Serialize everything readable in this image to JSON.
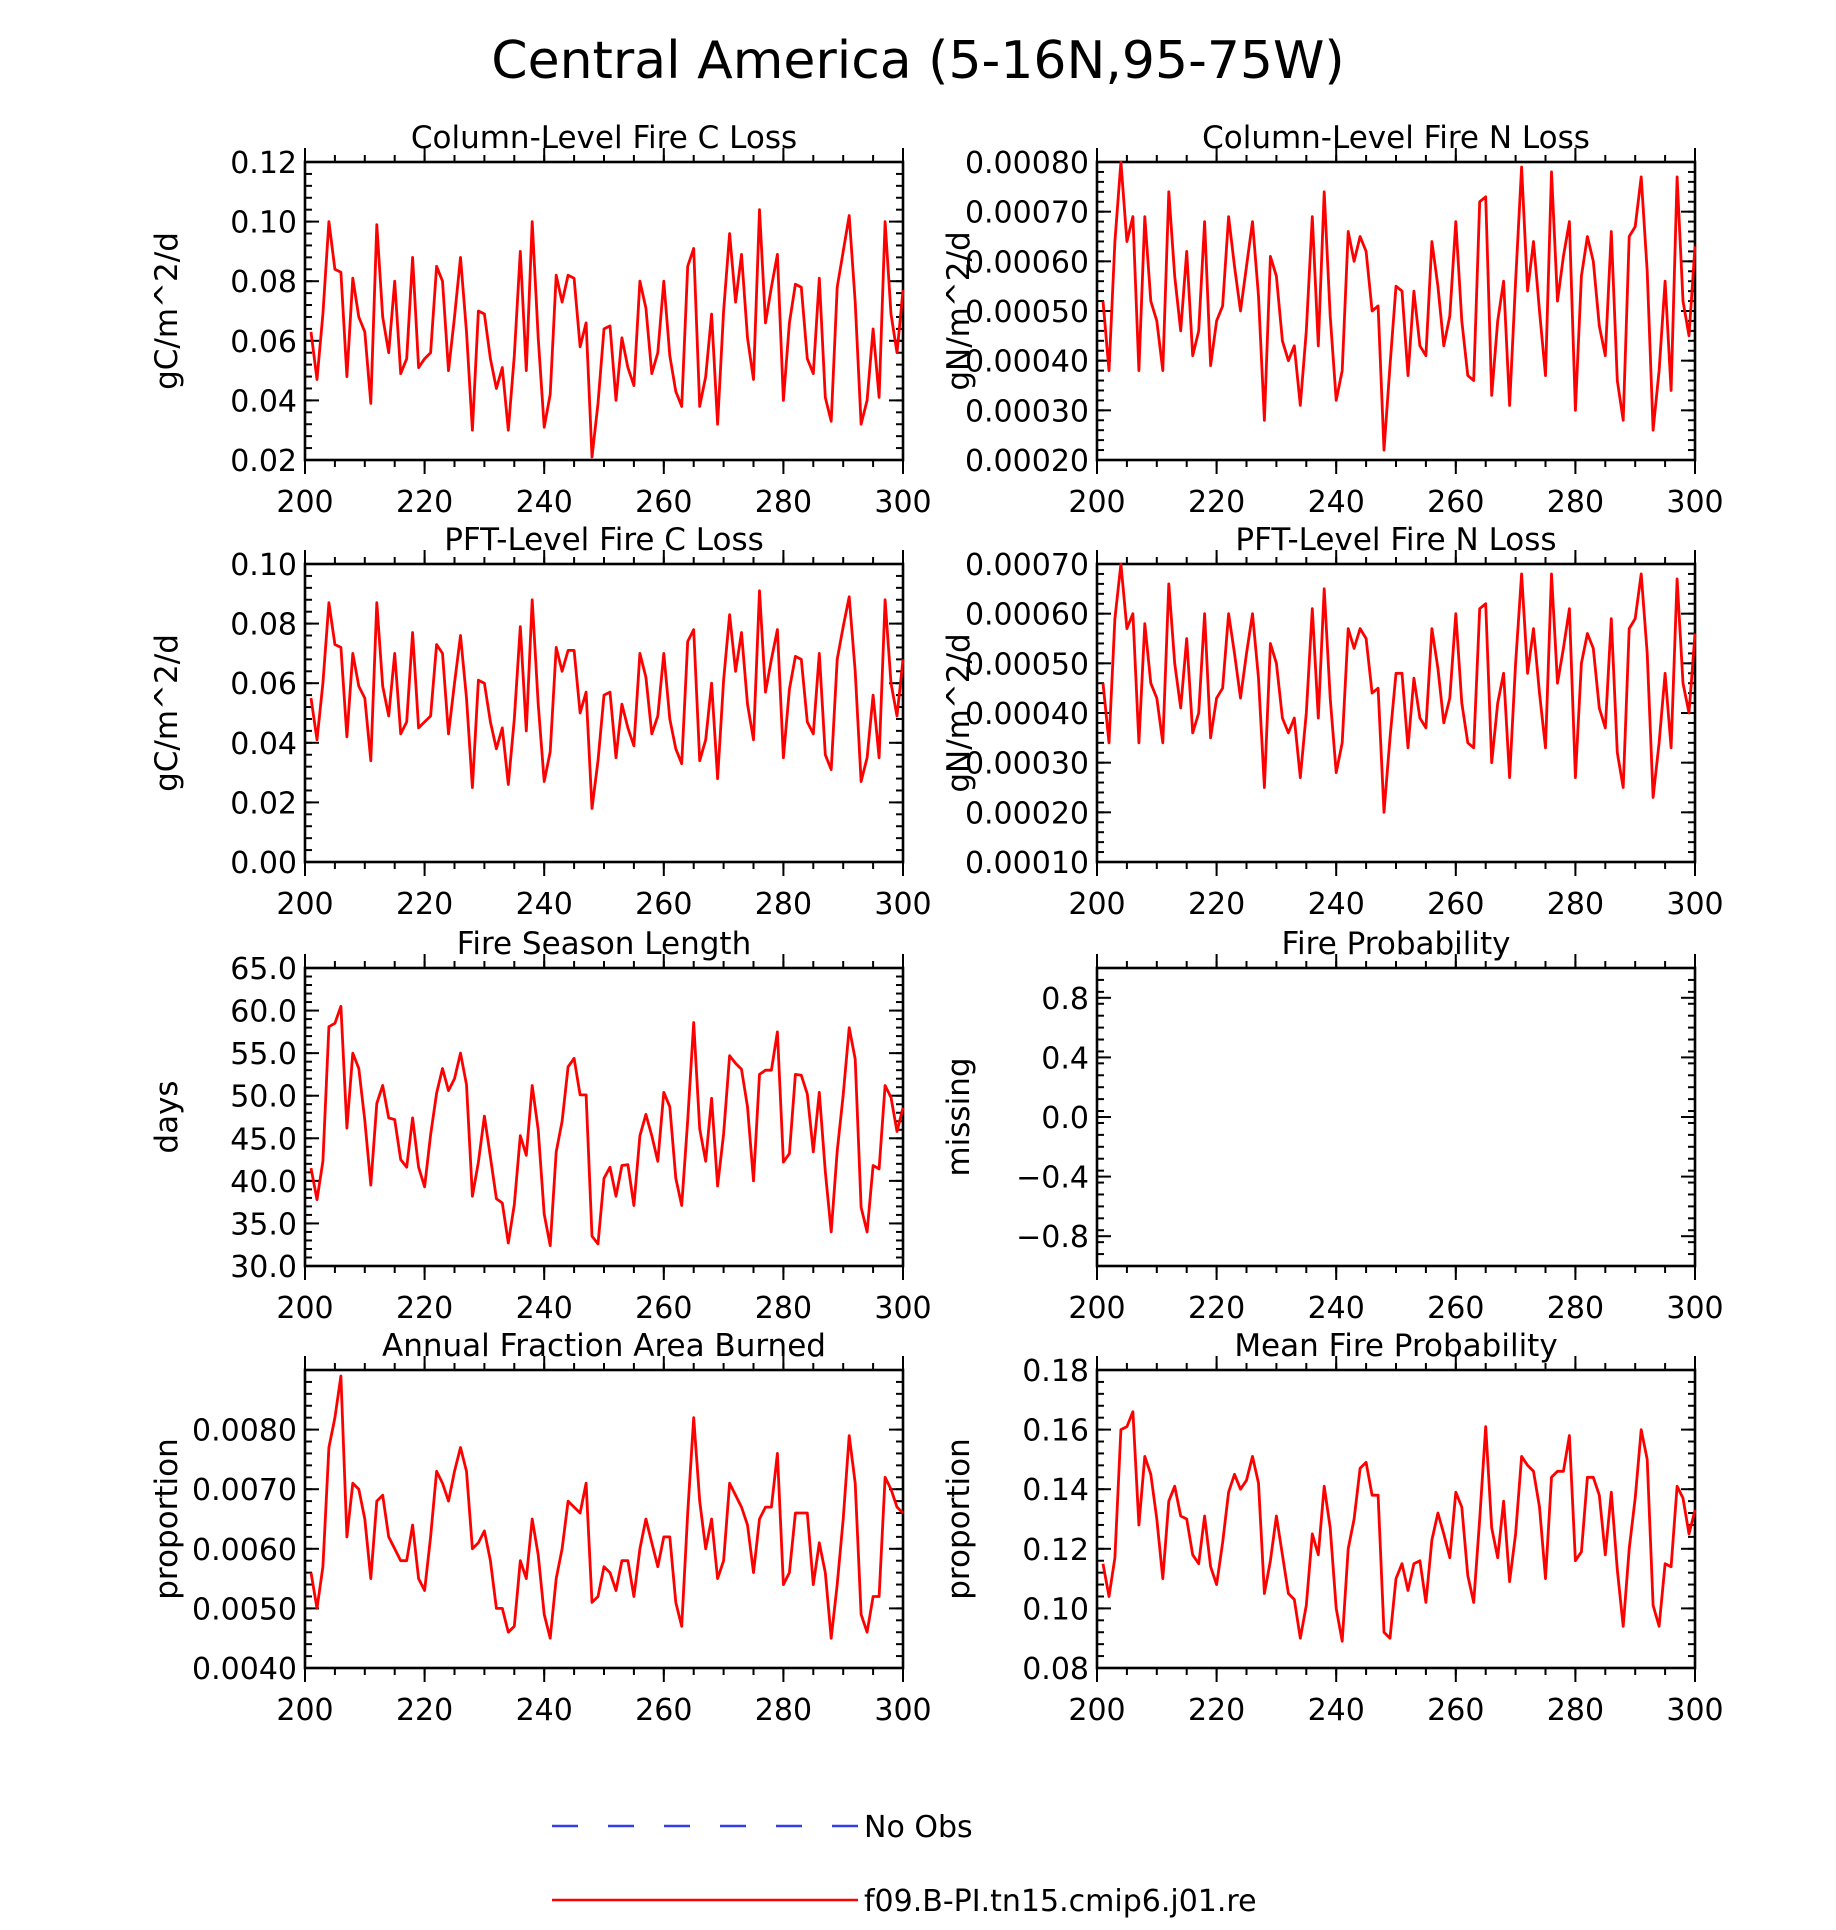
{
  "figure": {
    "title": "Central America (5-16N,95-75W)"
  },
  "legend": {
    "items": [
      {
        "label": "No Obs",
        "color": "#3340e8",
        "dash": true
      },
      {
        "label": "f09.B-PI.tn15.cmip6.j01.re",
        "color": "#ff0000",
        "dash": false
      }
    ]
  },
  "colors": {
    "series": "#ff0000",
    "obs": "#3340e8"
  },
  "chart_data": [
    {
      "type": "line",
      "title": "Column-Level Fire C Loss",
      "ylabel": "gC/m^2/d",
      "xlim": [
        200,
        300
      ],
      "ylim": [
        0.02,
        0.12
      ],
      "yticks": [
        "0.02",
        "0.04",
        "0.06",
        "0.08",
        "0.10",
        "0.12"
      ],
      "xticks": [
        "200",
        "220",
        "240",
        "260",
        "280",
        "300"
      ],
      "series": [
        {
          "name": "f09.B-PI.tn15.cmip6.j01.re",
          "x_start": 201,
          "values": [
            0.063,
            0.047,
            0.069,
            0.1,
            0.084,
            0.083,
            0.048,
            0.081,
            0.068,
            0.063,
            0.039,
            0.099,
            0.068,
            0.056,
            0.08,
            0.049,
            0.054,
            0.088,
            0.051,
            0.054,
            0.056,
            0.085,
            0.08,
            0.05,
            0.068,
            0.088,
            0.063,
            0.03,
            0.07,
            0.069,
            0.054,
            0.044,
            0.051,
            0.03,
            0.055,
            0.09,
            0.05,
            0.1,
            0.061,
            0.031,
            0.042,
            0.082,
            0.073,
            0.082,
            0.081,
            0.058,
            0.066,
            0.021,
            0.039,
            0.064,
            0.065,
            0.04,
            0.061,
            0.051,
            0.045,
            0.08,
            0.071,
            0.049,
            0.056,
            0.08,
            0.055,
            0.043,
            0.038,
            0.085,
            0.091,
            0.038,
            0.048,
            0.069,
            0.032,
            0.07,
            0.096,
            0.073,
            0.089,
            0.061,
            0.047,
            0.104,
            0.066,
            0.078,
            0.089,
            0.04,
            0.066,
            0.079,
            0.078,
            0.054,
            0.049,
            0.081,
            0.041,
            0.033,
            0.078,
            0.09,
            0.102,
            0.073,
            0.032,
            0.04,
            0.064,
            0.041,
            0.1,
            0.069,
            0.056,
            0.077
          ]
        }
      ]
    },
    {
      "type": "line",
      "title": "Column-Level Fire N Loss",
      "ylabel": "gN/m^2/d",
      "xlim": [
        200,
        300
      ],
      "ylim": [
        0.0002,
        0.0008
      ],
      "yticks": [
        "0.00020",
        "0.00030",
        "0.00040",
        "0.00050",
        "0.00060",
        "0.00070",
        "0.00080"
      ],
      "xticks": [
        "200",
        "220",
        "240",
        "260",
        "280",
        "300"
      ],
      "series": [
        {
          "name": "f09.B-PI.tn15.cmip6.j01.re",
          "x_start": 201,
          "values": [
            0.00052,
            0.00038,
            0.00064,
            0.0008,
            0.00064,
            0.00069,
            0.00038,
            0.00069,
            0.00052,
            0.00048,
            0.00038,
            0.00074,
            0.00057,
            0.00046,
            0.00062,
            0.00041,
            0.00046,
            0.00068,
            0.00039,
            0.00048,
            0.00051,
            0.00069,
            0.00059,
            0.0005,
            0.00059,
            0.00068,
            0.00053,
            0.00028,
            0.00061,
            0.00057,
            0.00044,
            0.0004,
            0.00043,
            0.00031,
            0.00046,
            0.00069,
            0.00043,
            0.00074,
            0.00049,
            0.00032,
            0.00038,
            0.00066,
            0.0006,
            0.00065,
            0.00062,
            0.0005,
            0.00051,
            0.00022,
            0.00039,
            0.00055,
            0.00054,
            0.00037,
            0.00054,
            0.00043,
            0.00041,
            0.00064,
            0.00055,
            0.00043,
            0.00049,
            0.00068,
            0.00048,
            0.00037,
            0.00036,
            0.00072,
            0.00073,
            0.00033,
            0.00048,
            0.00056,
            0.00031,
            0.00056,
            0.00079,
            0.00054,
            0.00064,
            0.0005,
            0.00037,
            0.00078,
            0.00052,
            0.00061,
            0.00068,
            0.0003,
            0.00057,
            0.00065,
            0.0006,
            0.00047,
            0.00041,
            0.00066,
            0.00036,
            0.00028,
            0.00065,
            0.00067,
            0.00077,
            0.00058,
            0.00026,
            0.00038,
            0.00056,
            0.00034,
            0.00077,
            0.00052,
            0.00045,
            0.00063
          ]
        }
      ]
    },
    {
      "type": "line",
      "title": "PFT-Level Fire C Loss",
      "ylabel": "gC/m^2/d",
      "xlim": [
        200,
        300
      ],
      "ylim": [
        0.0,
        0.1
      ],
      "yticks": [
        "0.00",
        "0.02",
        "0.04",
        "0.06",
        "0.08",
        "0.10"
      ],
      "xticks": [
        "200",
        "220",
        "240",
        "260",
        "280",
        "300"
      ],
      "series": [
        {
          "name": "f09.B-PI.tn15.cmip6.j01.re",
          "x_start": 201,
          "values": [
            0.055,
            0.041,
            0.06,
            0.087,
            0.073,
            0.072,
            0.042,
            0.07,
            0.059,
            0.055,
            0.034,
            0.087,
            0.059,
            0.049,
            0.07,
            0.043,
            0.047,
            0.077,
            0.045,
            0.047,
            0.049,
            0.073,
            0.07,
            0.043,
            0.06,
            0.076,
            0.055,
            0.025,
            0.061,
            0.06,
            0.047,
            0.038,
            0.045,
            0.026,
            0.048,
            0.079,
            0.044,
            0.088,
            0.053,
            0.027,
            0.037,
            0.072,
            0.064,
            0.071,
            0.071,
            0.05,
            0.057,
            0.018,
            0.034,
            0.056,
            0.057,
            0.035,
            0.053,
            0.045,
            0.039,
            0.07,
            0.062,
            0.043,
            0.049,
            0.07,
            0.048,
            0.038,
            0.033,
            0.074,
            0.078,
            0.034,
            0.041,
            0.06,
            0.028,
            0.061,
            0.083,
            0.064,
            0.077,
            0.053,
            0.041,
            0.091,
            0.057,
            0.068,
            0.078,
            0.035,
            0.058,
            0.069,
            0.068,
            0.047,
            0.043,
            0.07,
            0.036,
            0.031,
            0.068,
            0.079,
            0.089,
            0.064,
            0.027,
            0.035,
            0.056,
            0.035,
            0.088,
            0.06,
            0.049,
            0.068
          ]
        }
      ]
    },
    {
      "type": "line",
      "title": "PFT-Level Fire N Loss",
      "ylabel": "gN/m^2/d",
      "xlim": [
        200,
        300
      ],
      "ylim": [
        0.0001,
        0.0007
      ],
      "yticks": [
        "0.00010",
        "0.00020",
        "0.00030",
        "0.00040",
        "0.00050",
        "0.00060",
        "0.00070"
      ],
      "xticks": [
        "200",
        "220",
        "240",
        "260",
        "280",
        "300"
      ],
      "series": [
        {
          "name": "f09.B-PI.tn15.cmip6.j01.re",
          "x_start": 201,
          "values": [
            0.00046,
            0.00034,
            0.00059,
            0.0007,
            0.00057,
            0.0006,
            0.00034,
            0.00058,
            0.00046,
            0.00043,
            0.00034,
            0.00066,
            0.0005,
            0.00041,
            0.00055,
            0.00036,
            0.0004,
            0.0006,
            0.00035,
            0.00043,
            0.00045,
            0.0006,
            0.00052,
            0.00043,
            0.00052,
            0.0006,
            0.00047,
            0.00025,
            0.00054,
            0.0005,
            0.00039,
            0.00036,
            0.00039,
            0.00027,
            0.0004,
            0.00061,
            0.00039,
            0.00065,
            0.00043,
            0.00028,
            0.00034,
            0.00057,
            0.00053,
            0.00057,
            0.00055,
            0.00044,
            0.00045,
            0.0002,
            0.00035,
            0.00048,
            0.00048,
            0.00033,
            0.00047,
            0.00039,
            0.00037,
            0.00057,
            0.00049,
            0.00038,
            0.00043,
            0.0006,
            0.00042,
            0.00034,
            0.00033,
            0.00061,
            0.00062,
            0.0003,
            0.00042,
            0.00048,
            0.00027,
            0.0005,
            0.00068,
            0.00048,
            0.00057,
            0.00044,
            0.00033,
            0.00068,
            0.00046,
            0.00053,
            0.00061,
            0.00027,
            0.0005,
            0.00056,
            0.00053,
            0.00041,
            0.00037,
            0.00059,
            0.00032,
            0.00025,
            0.00057,
            0.00059,
            0.00068,
            0.00052,
            0.00023,
            0.00034,
            0.00048,
            0.00033,
            0.00067,
            0.00046,
            0.0004,
            0.00056
          ]
        }
      ]
    },
    {
      "type": "line",
      "title": "Fire Season Length",
      "ylabel": "days",
      "xlim": [
        200,
        300
      ],
      "ylim": [
        30.0,
        65.0
      ],
      "yticks": [
        "30.0",
        "35.0",
        "40.0",
        "45.0",
        "50.0",
        "55.0",
        "60.0",
        "65.0"
      ],
      "xticks": [
        "200",
        "220",
        "240",
        "260",
        "280",
        "300"
      ],
      "series": [
        {
          "name": "f09.B-PI.tn15.cmip6.j01.re",
          "x_start": 201,
          "values": [
            41.5,
            37.8,
            42.3,
            58.1,
            58.5,
            60.5,
            46.2,
            55.0,
            53.2,
            47.1,
            39.5,
            49.1,
            51.2,
            47.4,
            47.2,
            42.5,
            41.6,
            47.4,
            41.6,
            39.3,
            45.4,
            50.3,
            53.2,
            50.6,
            52.0,
            55.0,
            51.3,
            38.2,
            42.2,
            47.6,
            42.8,
            37.9,
            37.4,
            32.7,
            37.2,
            45.3,
            43.0,
            51.2,
            46.0,
            36.1,
            32.4,
            43.4,
            47.0,
            53.4,
            54.4,
            50.1,
            50.1,
            33.5,
            32.6,
            40.3,
            41.6,
            38.2,
            41.8,
            41.9,
            37.1,
            45.3,
            47.8,
            45.3,
            42.3,
            50.4,
            48.7,
            40.3,
            37.1,
            47.1,
            58.6,
            46.1,
            42.3,
            49.7,
            39.4,
            45.5,
            54.7,
            53.8,
            53.1,
            48.7,
            40.0,
            52.5,
            53.0,
            53.0,
            57.5,
            42.2,
            43.2,
            52.5,
            52.4,
            50.2,
            43.4,
            50.4,
            41.1,
            34.0,
            43.5,
            50.1,
            58.0,
            54.3,
            36.9,
            34.0,
            41.8,
            41.4,
            51.2,
            49.8,
            45.8,
            48.6
          ]
        }
      ]
    },
    {
      "type": "line",
      "title": "Fire Probability",
      "ylabel": "missing",
      "xlim": [
        200,
        300
      ],
      "ylim": [
        -1.0,
        1.0
      ],
      "yticks": [
        "−0.8",
        "−0.4",
        "0.0",
        "0.4",
        "0.8"
      ],
      "ytick_values": [
        -0.8,
        -0.4,
        0.0,
        0.4,
        0.8
      ],
      "xticks": [
        "200",
        "220",
        "240",
        "260",
        "280",
        "300"
      ],
      "series": []
    },
    {
      "type": "line",
      "title": "Annual Fraction Area Burned",
      "ylabel": "proportion",
      "xlim": [
        200,
        300
      ],
      "ylim": [
        0.004,
        0.009
      ],
      "yticks": [
        "0.0040",
        "0.0050",
        "0.0060",
        "0.0070",
        "0.0080"
      ],
      "xticks": [
        "200",
        "220",
        "240",
        "260",
        "280",
        "300"
      ],
      "series": [
        {
          "name": "f09.B-PI.tn15.cmip6.j01.re",
          "x_start": 201,
          "values": [
            0.0056,
            0.005,
            0.0057,
            0.0077,
            0.0082,
            0.0089,
            0.0062,
            0.0071,
            0.007,
            0.0065,
            0.0055,
            0.0068,
            0.0069,
            0.0062,
            0.006,
            0.0058,
            0.0058,
            0.0064,
            0.0055,
            0.0053,
            0.0062,
            0.0073,
            0.0071,
            0.0068,
            0.0073,
            0.0077,
            0.0073,
            0.006,
            0.0061,
            0.0063,
            0.0058,
            0.005,
            0.005,
            0.0046,
            0.0047,
            0.0058,
            0.0055,
            0.0065,
            0.0059,
            0.0049,
            0.0045,
            0.0055,
            0.006,
            0.0068,
            0.0067,
            0.0066,
            0.0071,
            0.0051,
            0.0052,
            0.0057,
            0.0056,
            0.0053,
            0.0058,
            0.0058,
            0.0052,
            0.006,
            0.0065,
            0.0061,
            0.0057,
            0.0062,
            0.0062,
            0.0051,
            0.0047,
            0.0066,
            0.0082,
            0.0068,
            0.006,
            0.0065,
            0.0055,
            0.0058,
            0.0071,
            0.0069,
            0.0067,
            0.0064,
            0.0056,
            0.0065,
            0.0067,
            0.0067,
            0.0076,
            0.0054,
            0.0056,
            0.0066,
            0.0066,
            0.0066,
            0.0054,
            0.0061,
            0.0056,
            0.0045,
            0.0054,
            0.0065,
            0.0079,
            0.0071,
            0.0049,
            0.0046,
            0.0052,
            0.0052,
            0.0072,
            0.007,
            0.0067,
            0.0066
          ]
        }
      ]
    },
    {
      "type": "line",
      "title": "Mean Fire Probability",
      "ylabel": "proportion",
      "xlim": [
        200,
        300
      ],
      "ylim": [
        0.08,
        0.18
      ],
      "yticks": [
        "0.08",
        "0.10",
        "0.12",
        "0.14",
        "0.16",
        "0.18"
      ],
      "xticks": [
        "200",
        "220",
        "240",
        "260",
        "280",
        "300"
      ],
      "series": [
        {
          "name": "f09.B-PI.tn15.cmip6.j01.re",
          "x_start": 201,
          "values": [
            0.115,
            0.104,
            0.117,
            0.16,
            0.161,
            0.166,
            0.128,
            0.151,
            0.145,
            0.13,
            0.11,
            0.136,
            0.141,
            0.131,
            0.13,
            0.118,
            0.115,
            0.131,
            0.114,
            0.108,
            0.122,
            0.139,
            0.145,
            0.14,
            0.143,
            0.151,
            0.142,
            0.105,
            0.116,
            0.131,
            0.118,
            0.105,
            0.103,
            0.09,
            0.101,
            0.125,
            0.118,
            0.141,
            0.127,
            0.1,
            0.089,
            0.12,
            0.13,
            0.147,
            0.149,
            0.138,
            0.138,
            0.092,
            0.09,
            0.11,
            0.115,
            0.106,
            0.115,
            0.116,
            0.102,
            0.123,
            0.132,
            0.125,
            0.117,
            0.139,
            0.134,
            0.111,
            0.102,
            0.13,
            0.161,
            0.127,
            0.117,
            0.136,
            0.109,
            0.125,
            0.151,
            0.148,
            0.146,
            0.134,
            0.11,
            0.144,
            0.146,
            0.146,
            0.158,
            0.116,
            0.119,
            0.144,
            0.144,
            0.138,
            0.118,
            0.139,
            0.113,
            0.094,
            0.12,
            0.137,
            0.16,
            0.15,
            0.101,
            0.094,
            0.115,
            0.114,
            0.141,
            0.137,
            0.125,
            0.133
          ]
        }
      ]
    }
  ]
}
